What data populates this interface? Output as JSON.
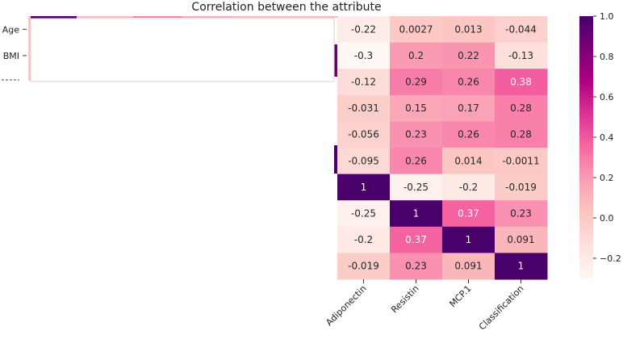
{
  "chart_data": {
    "type": "heatmap",
    "title": "Correlation between the attribute",
    "row_labels": [
      "Age",
      "BMI",
      "",
      "",
      "",
      "",
      "",
      "",
      "",
      ""
    ],
    "visible_columns": [
      "Adiponectin",
      "Resistin",
      "MCP.1",
      "Classification"
    ],
    "visible_values": [
      [
        "-0.22",
        "0.0027",
        "0.013",
        "-0.044"
      ],
      [
        "-0.3",
        "0.2",
        "0.22",
        "-0.13"
      ],
      [
        "-0.12",
        "0.29",
        "0.26",
        "0.38"
      ],
      [
        "-0.031",
        "0.15",
        "0.17",
        "0.28"
      ],
      [
        "-0.056",
        "0.23",
        "0.26",
        "0.28"
      ],
      [
        "-0.095",
        "0.26",
        "0.014",
        "-0.0011"
      ],
      [
        "1",
        "-0.25",
        "-0.2",
        "-0.019"
      ],
      [
        "-0.25",
        "1",
        "0.37",
        "0.23"
      ],
      [
        "-0.2",
        "0.37",
        "1",
        "0.091"
      ],
      [
        "-0.019",
        "0.23",
        "0.091",
        "1"
      ]
    ],
    "colormap": "RdPu",
    "vmin": -0.3,
    "vmax": 1.0,
    "colorbar_ticks": [
      "1.0",
      "0.8",
      "0.6",
      "0.4",
      "0.2",
      "0.0",
      "−0.2"
    ]
  }
}
